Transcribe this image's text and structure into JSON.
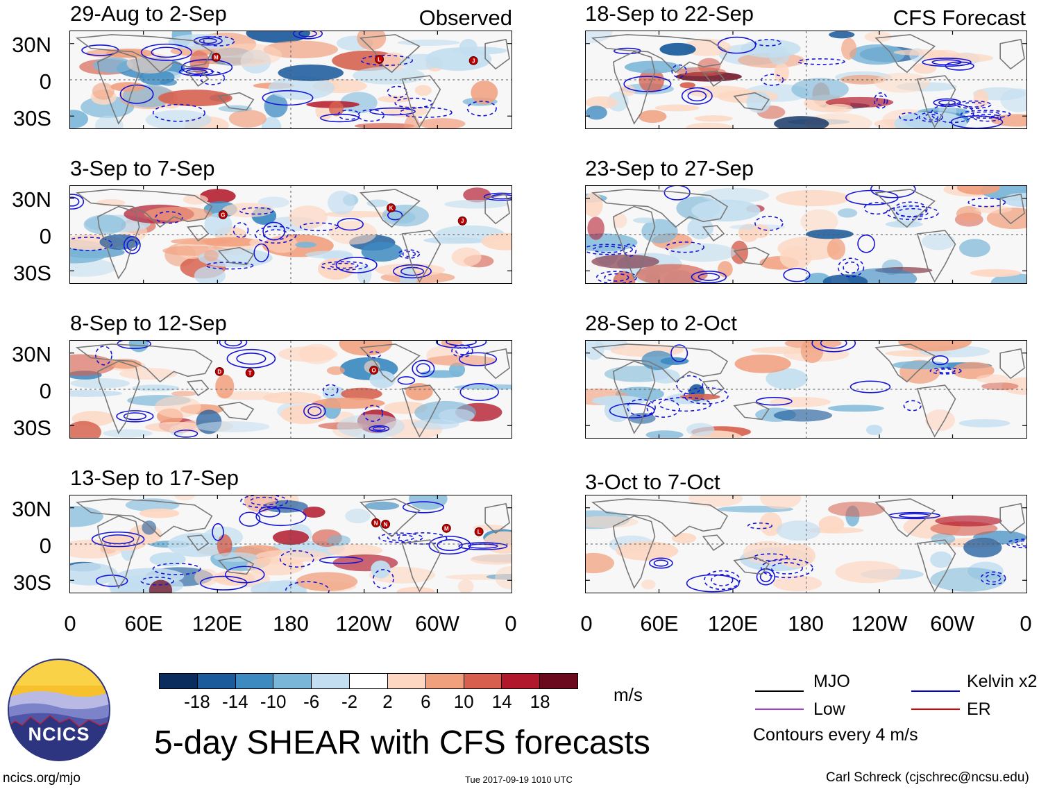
{
  "left_header": "Observed",
  "right_header": "CFS Forecast",
  "lat_labels": [
    "30N",
    "0",
    "30S"
  ],
  "lon_labels": [
    "0",
    "60E",
    "120E",
    "180",
    "120W",
    "60W",
    "0"
  ],
  "panels": {
    "observed": [
      {
        "period": "29-Aug to 2-Sep",
        "storms": [
          "M",
          "L",
          "J"
        ]
      },
      {
        "period": "3-Sep to 7-Sep",
        "storms": [
          "G",
          "K",
          "J"
        ]
      },
      {
        "period": "8-Sep to 12-Sep",
        "storms": [
          "D",
          "T",
          "O"
        ]
      },
      {
        "period": "13-Sep to 17-Sep",
        "storms": [
          "N",
          "N",
          "M",
          "L"
        ]
      }
    ],
    "forecast": [
      {
        "period": "18-Sep to 22-Sep"
      },
      {
        "period": "23-Sep to 27-Sep"
      },
      {
        "period": "28-Sep to 2-Oct"
      },
      {
        "period": "3-Oct to 7-Oct"
      }
    ]
  },
  "colorbar": {
    "colors": [
      "#0b2d5e",
      "#1b5b9c",
      "#3d8ac1",
      "#7ab6d8",
      "#c3def0",
      "#ffffff",
      "#fdd7c2",
      "#f1a07e",
      "#d6604d",
      "#b2182b",
      "#6b0a1e"
    ],
    "tick_labels": [
      "-18",
      "-14",
      "-10",
      "-6",
      "-2",
      "2",
      "6",
      "10",
      "14",
      "18"
    ],
    "unit": "m/s"
  },
  "legend": {
    "items": [
      {
        "label": "MJO",
        "color": "#000000"
      },
      {
        "label": "Kelvin x2",
        "color": "#0000dd"
      },
      {
        "label": "Low",
        "color": "#a040d0"
      },
      {
        "label": "ER",
        "color": "#dd0000"
      }
    ],
    "contour_note": "Contours every 4 m/s"
  },
  "logo_text": "NCICS",
  "main_title": "5-day SHEAR with CFS forecasts",
  "footer": {
    "url": "ncics.org/mjo",
    "timestamp": "Tue 2017-09-19 1010 UTC",
    "author": "Carl Schreck (cjschrec@ncsu.edu)"
  }
}
